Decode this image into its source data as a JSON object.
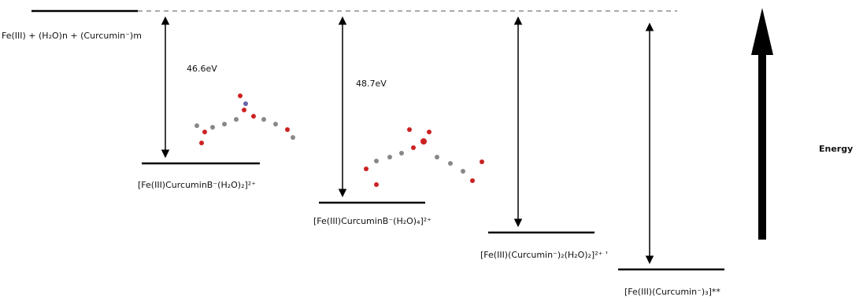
{
  "top_level": {
    "label": "Fe(III) + (H₂O)n + (Curcumin⁻)m"
  },
  "gaps": [
    "46.6eV",
    "48.7eV"
  ],
  "levels": [
    {
      "label": "[Fe(III)CurcuminB⁻(H₂O)₂]²⁺"
    },
    {
      "label": "[Fe(III)CurcuminB⁻(H₂O)₄]²⁺"
    },
    {
      "label": "[Fe(III)(Curcumin⁻)₂(H₂O)₂]²⁺ '"
    },
    {
      "label": "[Fe(III)(Curcumin⁻)₃]**"
    }
  ],
  "axis_label": "Energy"
}
